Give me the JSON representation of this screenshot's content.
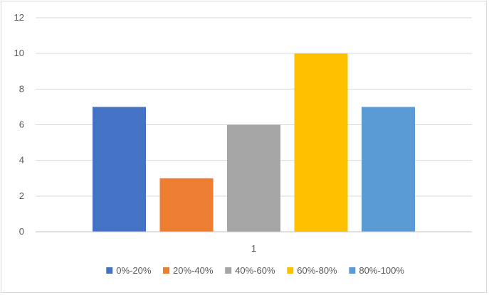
{
  "chart_data": {
    "type": "bar",
    "categories": [
      "1"
    ],
    "series": [
      {
        "name": "0%-20%",
        "values": [
          7
        ],
        "color": "#4472C4"
      },
      {
        "name": "20%-40%",
        "values": [
          3
        ],
        "color": "#ED7D31"
      },
      {
        "name": "40%-60%",
        "values": [
          6
        ],
        "color": "#A5A5A5"
      },
      {
        "name": "60%-80%",
        "values": [
          10
        ],
        "color": "#FFC000"
      },
      {
        "name": "80%-100%",
        "values": [
          7
        ],
        "color": "#5B9BD5"
      }
    ],
    "yticks": [
      "0",
      "2",
      "4",
      "6",
      "8",
      "10",
      "12"
    ],
    "ylim": [
      0,
      12
    ],
    "grid": true,
    "legend_position": "bottom",
    "title": "",
    "xlabel": "",
    "ylabel": ""
  }
}
